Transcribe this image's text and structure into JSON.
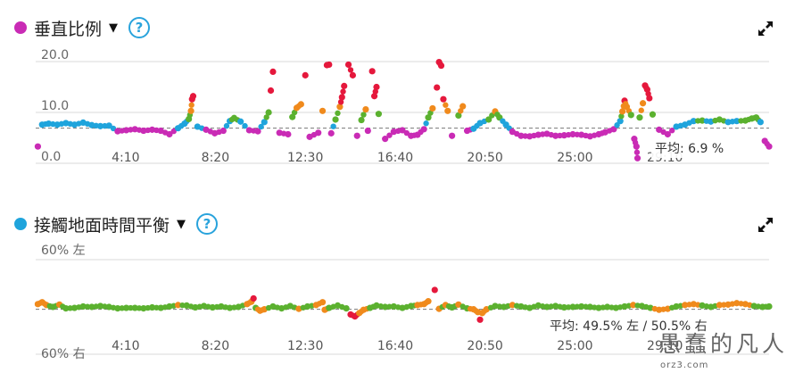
{
  "top": {
    "title": "垂直比例",
    "dot_color": "#c92bb5",
    "average_label": "平均: 6.9 %"
  },
  "bottom": {
    "title": "接觸地面時間平衡",
    "dot_color": "#1fa4dc",
    "average_label": "平均: 49.5% 左 / 50.5% 右"
  },
  "watermark": {
    "text": "愚蠢的凡人",
    "sub": "orz3.com"
  },
  "icons": {
    "help": "help-circle-icon",
    "expand": "expand-arrows-icon",
    "dropdown": "caret-down-icon"
  },
  "chart_data": [
    {
      "type": "scatter",
      "title": "垂直比例",
      "x_unit": "minutes",
      "xlim": [
        0,
        34
      ],
      "x_ticks": [
        {
          "x": 4.17,
          "label": "4:10"
        },
        {
          "x": 8.33,
          "label": "8:20"
        },
        {
          "x": 12.5,
          "label": "12:30"
        },
        {
          "x": 16.67,
          "label": "16:40"
        },
        {
          "x": 20.83,
          "label": "20:50"
        },
        {
          "x": 25.0,
          "label": "25:00"
        },
        {
          "x": 29.17,
          "label": "29:10"
        }
      ],
      "y_ticks": [
        "0.0",
        "10.0",
        "20.0"
      ],
      "ylim": [
        0,
        20
      ],
      "average": 6.9,
      "zone_colors": [
        "#c92bb5",
        "#1fa4dc",
        "#5bb12f",
        "#f08a1c",
        "#e5183c"
      ],
      "points": [
        [
          0.1,
          3.3
        ],
        [
          0.3,
          7.6
        ],
        [
          0.6,
          7.8
        ],
        [
          1.0,
          7.6
        ],
        [
          1.4,
          7.9
        ],
        [
          1.8,
          7.6
        ],
        [
          2.2,
          8.0
        ],
        [
          2.6,
          7.5
        ],
        [
          3.0,
          7.3
        ],
        [
          3.4,
          7.4
        ],
        [
          3.8,
          6.3
        ],
        [
          4.2,
          6.5
        ],
        [
          4.6,
          6.7
        ],
        [
          5.0,
          6.4
        ],
        [
          5.4,
          6.6
        ],
        [
          5.8,
          6.4
        ],
        [
          6.2,
          5.7
        ],
        [
          6.6,
          6.9
        ],
        [
          6.9,
          7.8
        ],
        [
          7.1,
          8.7
        ],
        [
          7.2,
          10.3
        ],
        [
          7.25,
          12.6
        ],
        [
          7.3,
          13.2
        ],
        [
          7.5,
          7.2
        ],
        [
          7.9,
          6.6
        ],
        [
          8.3,
          5.9
        ],
        [
          8.7,
          6.4
        ],
        [
          9.0,
          8.3
        ],
        [
          9.2,
          8.9
        ],
        [
          9.5,
          8.2
        ],
        [
          9.9,
          6.5
        ],
        [
          10.3,
          6.3
        ],
        [
          10.6,
          8.1
        ],
        [
          10.8,
          10.0
        ],
        [
          10.9,
          14.3
        ],
        [
          11.0,
          18.0
        ],
        [
          11.3,
          6.0
        ],
        [
          11.7,
          5.7
        ],
        [
          11.9,
          9.1
        ],
        [
          12.1,
          10.9
        ],
        [
          12.3,
          11.6
        ],
        [
          12.5,
          17.3
        ],
        [
          12.7,
          5.2
        ],
        [
          13.1,
          6.0
        ],
        [
          13.3,
          10.3
        ],
        [
          13.5,
          19.3
        ],
        [
          13.6,
          19.4
        ],
        [
          13.7,
          5.9
        ],
        [
          13.9,
          8.6
        ],
        [
          14.1,
          11.1
        ],
        [
          14.2,
          13.0
        ],
        [
          14.3,
          15.2
        ],
        [
          14.5,
          19.4
        ],
        [
          14.7,
          17.3
        ],
        [
          14.9,
          5.4
        ],
        [
          15.1,
          8.5
        ],
        [
          15.3,
          10.6
        ],
        [
          15.4,
          6.4
        ],
        [
          15.6,
          18.1
        ],
        [
          15.7,
          13.2
        ],
        [
          15.8,
          15.0
        ],
        [
          15.9,
          9.7
        ],
        [
          16.2,
          4.8
        ],
        [
          16.6,
          6.2
        ],
        [
          17.0,
          6.5
        ],
        [
          17.4,
          5.4
        ],
        [
          17.7,
          5.6
        ],
        [
          18.0,
          6.7
        ],
        [
          18.2,
          9.0
        ],
        [
          18.4,
          10.8
        ],
        [
          18.6,
          14.9
        ],
        [
          18.7,
          19.9
        ],
        [
          18.8,
          19.2
        ],
        [
          18.9,
          12.6
        ],
        [
          19.1,
          10.3
        ],
        [
          19.3,
          5.4
        ],
        [
          19.6,
          9.4
        ],
        [
          19.8,
          11.2
        ],
        [
          20.0,
          6.4
        ],
        [
          20.3,
          6.8
        ],
        [
          20.6,
          7.9
        ],
        [
          21.0,
          8.6
        ],
        [
          21.3,
          10.2
        ],
        [
          21.5,
          9.0
        ],
        [
          21.8,
          7.6
        ],
        [
          22.1,
          6.2
        ],
        [
          22.5,
          5.4
        ],
        [
          22.9,
          5.3
        ],
        [
          23.3,
          5.6
        ],
        [
          23.7,
          5.8
        ],
        [
          24.1,
          5.4
        ],
        [
          24.5,
          5.5
        ],
        [
          24.9,
          5.7
        ],
        [
          25.3,
          5.6
        ],
        [
          25.7,
          5.3
        ],
        [
          26.1,
          5.7
        ],
        [
          26.4,
          6.1
        ],
        [
          26.8,
          6.7
        ],
        [
          27.1,
          8.3
        ],
        [
          27.2,
          10.2
        ],
        [
          27.3,
          12.3
        ],
        [
          27.4,
          11.1
        ],
        [
          27.6,
          9.5
        ],
        [
          27.75,
          4.8
        ],
        [
          27.85,
          3.3
        ],
        [
          27.9,
          1.0
        ],
        [
          28.0,
          9.0
        ],
        [
          28.15,
          11.8
        ],
        [
          28.25,
          15.3
        ],
        [
          28.35,
          14.5
        ],
        [
          28.45,
          12.8
        ],
        [
          28.6,
          9.6
        ],
        [
          28.9,
          6.6
        ],
        [
          29.3,
          5.7
        ],
        [
          29.7,
          7.2
        ],
        [
          30.1,
          7.6
        ],
        [
          30.5,
          8.3
        ],
        [
          30.9,
          8.4
        ],
        [
          31.3,
          8.2
        ],
        [
          31.7,
          8.6
        ],
        [
          32.1,
          8.1
        ],
        [
          32.5,
          8.3
        ],
        [
          32.9,
          8.4
        ],
        [
          33.2,
          8.8
        ],
        [
          33.4,
          9.0
        ],
        [
          33.6,
          8.1
        ],
        [
          33.8,
          4.4
        ],
        [
          34.0,
          3.3
        ]
      ]
    },
    {
      "type": "scatter",
      "title": "接觸地面時間平衡",
      "x_unit": "minutes",
      "xlim": [
        0,
        34
      ],
      "x_ticks": [
        {
          "x": 4.17,
          "label": "4:10"
        },
        {
          "x": 8.33,
          "label": "8:20"
        },
        {
          "x": 12.5,
          "label": "12:30"
        },
        {
          "x": 16.67,
          "label": "16:40"
        },
        {
          "x": 20.83,
          "label": "20:50"
        },
        {
          "x": 25.0,
          "label": "25:00"
        },
        {
          "x": 29.17,
          "label": "29:10"
        }
      ],
      "y_label_top": "60% 左",
      "y_label_bottom": "60% 右",
      "y_unit": "left-right deviation (positive = left)",
      "ylim": [
        -10,
        10
      ],
      "average_left": 49.5,
      "average_right": 50.5,
      "zone_colors": [
        "#5bb12f",
        "#f08a1c",
        "#e5183c"
      ],
      "points": [
        [
          0.1,
          0.6
        ],
        [
          0.3,
          1.0
        ],
        [
          0.5,
          0.4
        ],
        [
          0.8,
          0.0
        ],
        [
          1.1,
          0.5
        ],
        [
          1.4,
          -0.3
        ],
        [
          1.8,
          -0.2
        ],
        [
          2.2,
          0.1
        ],
        [
          2.6,
          0.0
        ],
        [
          3.0,
          0.2
        ],
        [
          3.4,
          0.0
        ],
        [
          3.8,
          -0.3
        ],
        [
          4.2,
          -0.2
        ],
        [
          4.6,
          -0.2
        ],
        [
          5.0,
          -0.3
        ],
        [
          5.4,
          -0.1
        ],
        [
          5.8,
          -0.2
        ],
        [
          6.2,
          0.1
        ],
        [
          6.6,
          0.4
        ],
        [
          7.0,
          0.3
        ],
        [
          7.4,
          -0.1
        ],
        [
          7.8,
          0.2
        ],
        [
          8.2,
          -0.1
        ],
        [
          8.6,
          0.1
        ],
        [
          9.0,
          -0.2
        ],
        [
          9.4,
          0.0
        ],
        [
          9.8,
          0.6
        ],
        [
          10.0,
          1.1
        ],
        [
          10.1,
          1.8
        ],
        [
          10.2,
          -0.2
        ],
        [
          10.4,
          -0.8
        ],
        [
          10.6,
          -0.5
        ],
        [
          11.0,
          0.1
        ],
        [
          11.4,
          -0.3
        ],
        [
          11.8,
          0.2
        ],
        [
          12.2,
          -0.4
        ],
        [
          12.6,
          0.1
        ],
        [
          13.0,
          0.4
        ],
        [
          13.3,
          1.0
        ],
        [
          13.4,
          -0.6
        ],
        [
          13.6,
          -0.2
        ],
        [
          14.0,
          0.3
        ],
        [
          14.4,
          -0.3
        ],
        [
          14.6,
          -1.6
        ],
        [
          14.8,
          -2.0
        ],
        [
          15.0,
          -1.3
        ],
        [
          15.2,
          -0.6
        ],
        [
          15.5,
          -0.2
        ],
        [
          15.8,
          0.3
        ],
        [
          16.2,
          0.0
        ],
        [
          16.6,
          0.1
        ],
        [
          17.0,
          -0.2
        ],
        [
          17.4,
          0.2
        ],
        [
          17.7,
          0.4
        ],
        [
          18.0,
          0.6
        ],
        [
          18.2,
          1.2
        ],
        [
          18.5,
          3.6
        ],
        [
          18.7,
          -0.4
        ],
        [
          19.0,
          0.4
        ],
        [
          19.3,
          -0.1
        ],
        [
          19.6,
          0.5
        ],
        [
          20.0,
          -0.3
        ],
        [
          20.3,
          -0.5
        ],
        [
          20.5,
          -1.1
        ],
        [
          20.6,
          -2.7
        ],
        [
          20.7,
          -1.3
        ],
        [
          20.9,
          -0.5
        ],
        [
          21.3,
          0.2
        ],
        [
          21.7,
          0.0
        ],
        [
          22.1,
          0.4
        ],
        [
          22.5,
          0.1
        ],
        [
          22.9,
          -0.2
        ],
        [
          23.3,
          0.3
        ],
        [
          23.7,
          0.0
        ],
        [
          24.1,
          0.2
        ],
        [
          24.5,
          -0.1
        ],
        [
          24.9,
          0.0
        ],
        [
          25.3,
          0.1
        ],
        [
          25.7,
          0.0
        ],
        [
          26.1,
          -0.2
        ],
        [
          26.5,
          0.0
        ],
        [
          26.9,
          -0.2
        ],
        [
          27.3,
          0.1
        ],
        [
          27.7,
          0.4
        ],
        [
          28.1,
          0.2
        ],
        [
          28.5,
          -0.2
        ],
        [
          28.9,
          -0.6
        ],
        [
          29.3,
          -0.4
        ],
        [
          29.7,
          0.1
        ],
        [
          30.1,
          0.4
        ],
        [
          30.5,
          0.6
        ],
        [
          30.9,
          0.3
        ],
        [
          31.3,
          0.0
        ],
        [
          31.7,
          0.4
        ],
        [
          32.1,
          0.5
        ],
        [
          32.5,
          0.8
        ],
        [
          32.9,
          0.6
        ],
        [
          33.3,
          0.2
        ],
        [
          33.7,
          0.0
        ],
        [
          34.0,
          0.1
        ]
      ]
    }
  ]
}
